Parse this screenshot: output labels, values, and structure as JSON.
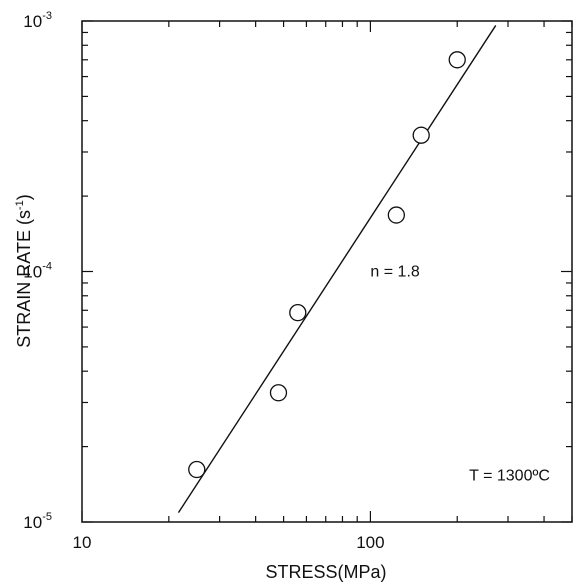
{
  "chart_data": {
    "type": "scatter",
    "xscale": "log",
    "yscale": "log",
    "xlim": [
      10,
      500
    ],
    "ylim": [
      1e-05,
      0.001
    ],
    "xlabel": "STRESS(MPa)",
    "ylabel": "STRAIN RATE (s",
    "ylabel_exp": "-1",
    "ylabel_close": ")",
    "x_tick_labels": [
      {
        "value": 10,
        "text": "10"
      },
      {
        "value": 100,
        "text": "100"
      }
    ],
    "y_tick_labels": [
      {
        "value": 1e-05,
        "base": "10",
        "exp": "-5"
      },
      {
        "value": 0.0001,
        "base": "10",
        "exp": "-4"
      },
      {
        "value": 0.001,
        "base": "10",
        "exp": "-3"
      }
    ],
    "points": [
      {
        "x": 25,
        "y": 1.62e-05
      },
      {
        "x": 48,
        "y": 3.28e-05
      },
      {
        "x": 56,
        "y": 6.85e-05
      },
      {
        "x": 123,
        "y": 0.000168
      },
      {
        "x": 150,
        "y": 0.00035
      },
      {
        "x": 200,
        "y": 0.0007
      }
    ],
    "fit_line": {
      "x": [
        21.6,
        272
      ],
      "y": [
        1.09e-05,
        0.00096
      ]
    },
    "annotations": [
      {
        "text": "n = 1.8",
        "x": 100,
        "y": 0.0001
      },
      {
        "text": "T = 1300ºC",
        "x": 220,
        "y": 1.53e-05
      }
    ],
    "grid": false,
    "legend": "none",
    "colors": {
      "marks": "#111111",
      "background": "#ffffff"
    }
  }
}
